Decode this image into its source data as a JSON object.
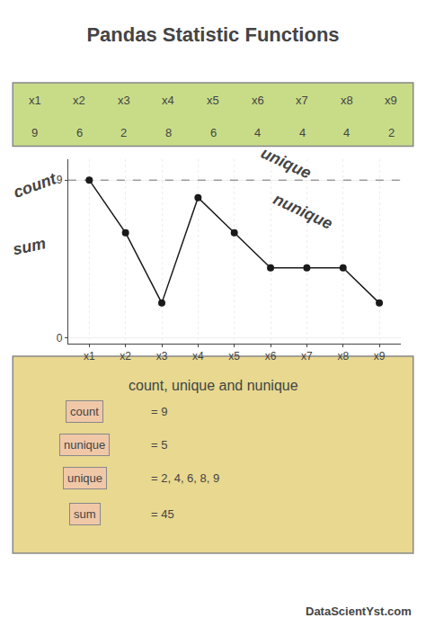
{
  "chart_data": {
    "type": "line",
    "title": "Pandas Statistic Functions",
    "categories": [
      "x1",
      "x2",
      "x3",
      "x4",
      "x5",
      "x6",
      "x7",
      "x8",
      "x9"
    ],
    "values": [
      9,
      6,
      2,
      8,
      6,
      4,
      4,
      4,
      2
    ],
    "color": "#1a1a1a",
    "marker": "circle",
    "ylim": [
      -0.3,
      10.2
    ],
    "yticks": [
      0,
      9
    ],
    "hline": 9,
    "grid": true,
    "annotations": [
      "count",
      "sum",
      "unique",
      "nunique"
    ],
    "table": {
      "headers": [
        "x1",
        "x2",
        "x3",
        "x4",
        "x5",
        "x6",
        "x7",
        "x8",
        "x9"
      ],
      "values": [
        9,
        6,
        2,
        8,
        6,
        4,
        4,
        4,
        2
      ],
      "color": "#c8dc88"
    },
    "box": {
      "title": "count, unique and nunique",
      "color": "#e8d890",
      "label_color": "#f0c8a8",
      "items": [
        {
          "label": "count",
          "text": "= 9"
        },
        {
          "label": "nunique",
          "text": "= 5"
        },
        {
          "label": "unique",
          "text": "= 2, 4, 6, 8, 9"
        },
        {
          "label": "sum",
          "text": "= 45"
        }
      ]
    },
    "watermark": "DataScientYst.com"
  }
}
